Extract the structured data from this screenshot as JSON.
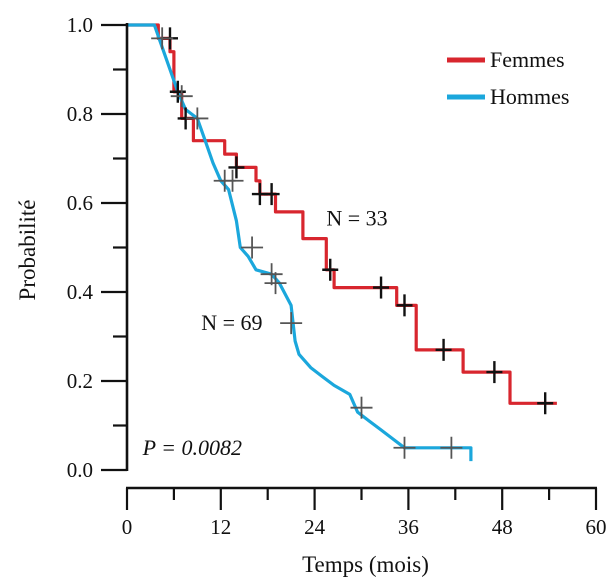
{
  "chart_data": {
    "type": "line",
    "subtype": "kaplan-meier step",
    "title": "",
    "xlabel": "Temps (mois)",
    "ylabel": "Probabilité",
    "xlim": [
      0,
      60
    ],
    "ylim": [
      0,
      1
    ],
    "xticks": [
      0,
      12,
      24,
      36,
      48,
      60
    ],
    "xtick_labels": [
      "0",
      "12",
      "24",
      "36",
      "48",
      "60"
    ],
    "yticks": [
      0,
      0.2,
      0.4,
      0.6,
      0.8,
      1.0
    ],
    "ytick_labels": [
      "0.0",
      "0.2",
      "0.4",
      "0.6",
      "0.8",
      "1.0"
    ],
    "grid": false,
    "legend": {
      "placement": "top-right"
    },
    "annotations": [
      {
        "text": "N = 33",
        "x": 25.5,
        "y": 0.565
      },
      {
        "text": "N = 69",
        "x": 9.5,
        "y": 0.33
      },
      {
        "text": "P = 0.0082",
        "x": 2,
        "y": 0.05,
        "italic": true
      }
    ],
    "series": [
      {
        "name": "Femmes",
        "color": "#d8262e",
        "points": [
          [
            0,
            1.0
          ],
          [
            4,
            1.0
          ],
          [
            4,
            0.97
          ],
          [
            5.5,
            0.97
          ],
          [
            5.5,
            0.94
          ],
          [
            6,
            0.94
          ],
          [
            6,
            0.85
          ],
          [
            7,
            0.85
          ],
          [
            7,
            0.79
          ],
          [
            8.5,
            0.79
          ],
          [
            8.5,
            0.74
          ],
          [
            12.5,
            0.74
          ],
          [
            12.5,
            0.71
          ],
          [
            14,
            0.71
          ],
          [
            14,
            0.68
          ],
          [
            16.5,
            0.68
          ],
          [
            16.5,
            0.65
          ],
          [
            17,
            0.65
          ],
          [
            17,
            0.62
          ],
          [
            19,
            0.62
          ],
          [
            19,
            0.58
          ],
          [
            22.5,
            0.58
          ],
          [
            22.5,
            0.52
          ],
          [
            25.5,
            0.52
          ],
          [
            25.5,
            0.45
          ],
          [
            26.5,
            0.45
          ],
          [
            26.5,
            0.41
          ],
          [
            34.5,
            0.41
          ],
          [
            34.5,
            0.37
          ],
          [
            37,
            0.37
          ],
          [
            37,
            0.27
          ],
          [
            43,
            0.27
          ],
          [
            43,
            0.22
          ],
          [
            49,
            0.22
          ],
          [
            49,
            0.15
          ],
          [
            55,
            0.15
          ]
        ],
        "censor": [
          [
            5.5,
            0.97
          ],
          [
            6.5,
            0.85
          ],
          [
            7.5,
            0.79
          ],
          [
            14,
            0.68
          ],
          [
            17,
            0.62
          ],
          [
            18.5,
            0.62
          ],
          [
            26,
            0.45
          ],
          [
            32.5,
            0.41
          ],
          [
            35.5,
            0.37
          ],
          [
            40.5,
            0.27
          ],
          [
            47,
            0.22
          ],
          [
            53.5,
            0.15
          ]
        ]
      },
      {
        "name": "Hommes",
        "color": "#1ba7dc",
        "points": [
          [
            0,
            1.0
          ],
          [
            3.5,
            1.0
          ],
          [
            4.5,
            0.95
          ],
          [
            5.5,
            0.9
          ],
          [
            6.5,
            0.85
          ],
          [
            7.5,
            0.81
          ],
          [
            9,
            0.79
          ],
          [
            10,
            0.74
          ],
          [
            11,
            0.69
          ],
          [
            12,
            0.65
          ],
          [
            13,
            0.63
          ],
          [
            14,
            0.56
          ],
          [
            14.5,
            0.5
          ],
          [
            15.5,
            0.48
          ],
          [
            16.5,
            0.45
          ],
          [
            18.5,
            0.44
          ],
          [
            19.5,
            0.42
          ],
          [
            21,
            0.37
          ],
          [
            21.5,
            0.29
          ],
          [
            22,
            0.26
          ],
          [
            23.5,
            0.23
          ],
          [
            25,
            0.21
          ],
          [
            26.5,
            0.19
          ],
          [
            28.5,
            0.17
          ],
          [
            29.5,
            0.13
          ],
          [
            31,
            0.11
          ],
          [
            32.5,
            0.09
          ],
          [
            34,
            0.07
          ],
          [
            35.5,
            0.05
          ],
          [
            44,
            0.05
          ],
          [
            44,
            0.02
          ]
        ],
        "censor": [
          [
            4.5,
            0.97
          ],
          [
            7,
            0.84
          ],
          [
            9,
            0.79
          ],
          [
            12.5,
            0.65
          ],
          [
            13.5,
            0.65
          ],
          [
            16,
            0.5
          ],
          [
            18.5,
            0.44
          ],
          [
            19,
            0.42
          ],
          [
            21,
            0.33
          ],
          [
            30,
            0.14
          ],
          [
            35.5,
            0.05
          ],
          [
            41.5,
            0.05
          ]
        ]
      }
    ]
  }
}
